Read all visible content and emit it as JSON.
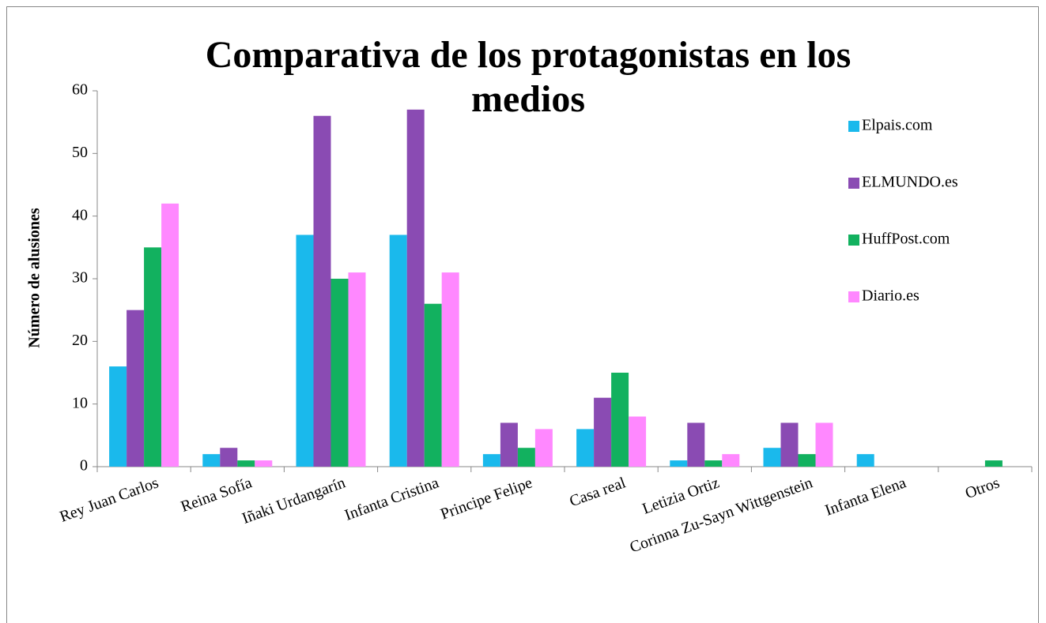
{
  "chart_data": {
    "type": "bar",
    "title": "Comparativa de los protagonistas en los medios",
    "y_label": "Número de alusiones",
    "categories": [
      "Rey Juan Carlos",
      "Reina Sofía",
      "Iñaki Urdangarín",
      "Infanta Cristina",
      "Principe Felipe",
      "Casa real",
      "Letizia Ortiz",
      "Corinna Zu-Sayn Wittgenstein",
      "Infanta Elena",
      "Otros"
    ],
    "series": [
      {
        "name": "Elpais.com",
        "color": "#1ab9ec",
        "values": [
          16,
          2,
          37,
          37,
          2,
          6,
          1,
          3,
          2,
          0
        ]
      },
      {
        "name": "ELMUNDO.es",
        "color": "#8a4bb3",
        "values": [
          25,
          3,
          56,
          57,
          7,
          11,
          7,
          7,
          0,
          0
        ]
      },
      {
        "name": "HuffPost.com",
        "color": "#12b15f",
        "values": [
          35,
          1,
          30,
          26,
          3,
          15,
          1,
          2,
          0,
          1
        ]
      },
      {
        "name": "Diario.es",
        "color": "#ff88ff",
        "values": [
          42,
          1,
          31,
          31,
          6,
          8,
          2,
          7,
          0,
          0
        ]
      }
    ],
    "ylim": [
      0,
      60
    ],
    "yticks": [
      0,
      10,
      20,
      30,
      40,
      50,
      60
    ],
    "legend": "right"
  }
}
